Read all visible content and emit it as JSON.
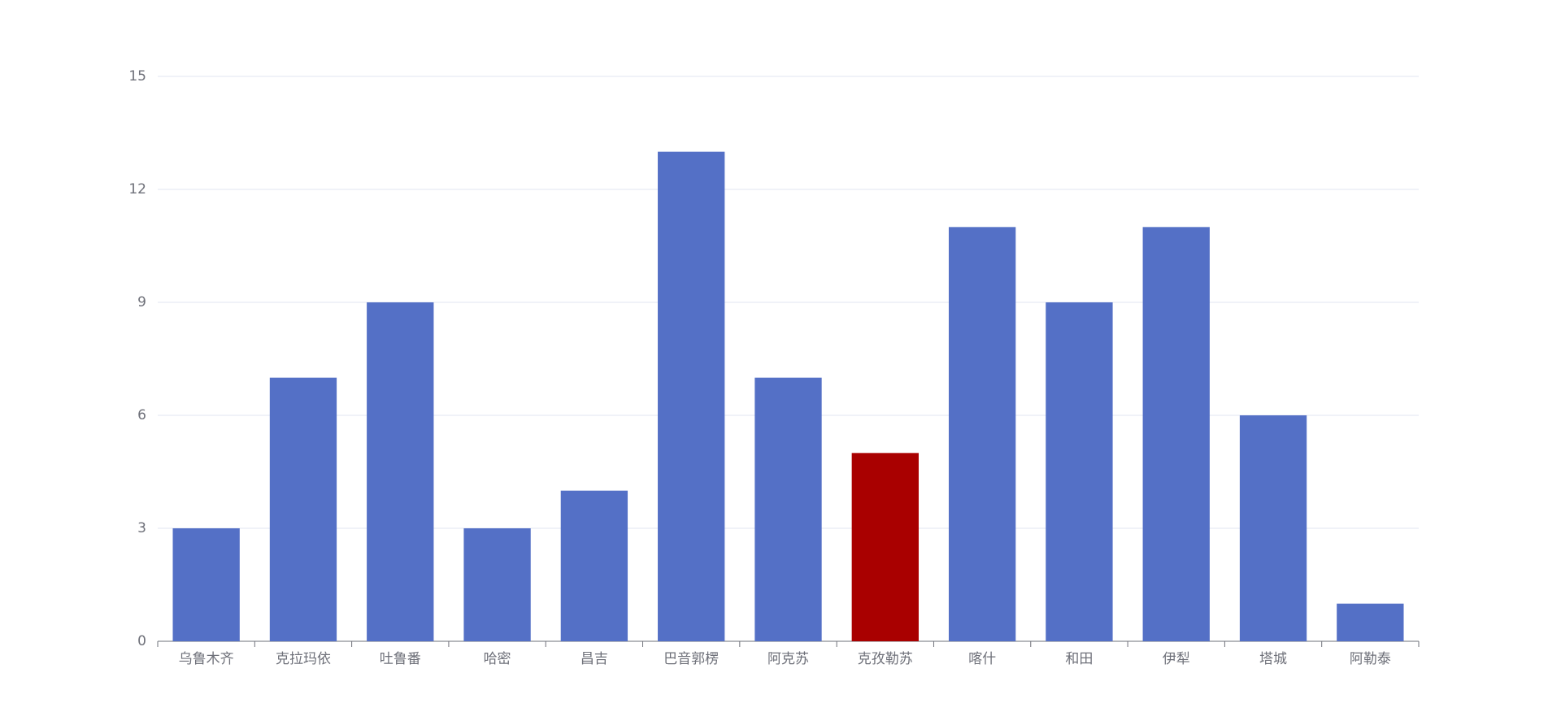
{
  "chart_data": {
    "type": "bar",
    "categories": [
      "乌鲁木齐",
      "克拉玛依",
      "吐鲁番",
      "哈密",
      "昌吉",
      "巴音郭楞",
      "阿克苏",
      "克孜勒苏",
      "喀什",
      "和田",
      "伊犁",
      "塔城",
      "阿勒泰"
    ],
    "values": [
      3,
      7,
      9,
      3,
      4,
      13,
      7,
      5,
      11,
      9,
      11,
      6,
      1
    ],
    "colors": [
      "#5470c6",
      "#5470c6",
      "#5470c6",
      "#5470c6",
      "#5470c6",
      "#5470c6",
      "#5470c6",
      "#a90000",
      "#5470c6",
      "#5470c6",
      "#5470c6",
      "#5470c6",
      "#5470c6"
    ],
    "ylim": [
      0,
      15
    ],
    "yticks": [
      0,
      3,
      6,
      9,
      12,
      15
    ],
    "grid": true
  }
}
